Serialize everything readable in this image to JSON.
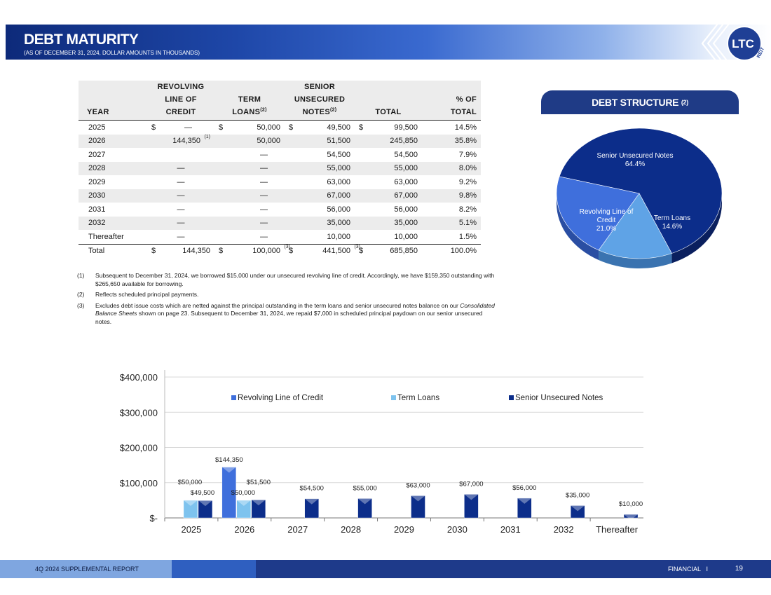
{
  "header": {
    "title": "DEBT MATURITY",
    "subtitle": "(AS OF DECEMBER 31, 2024, DOLLAR AMOUNTS IN THOUSANDS)",
    "logo_text": "LTC",
    "logo_sub": "REIT"
  },
  "table": {
    "headers": {
      "year": "YEAR",
      "rloc_1": "REVOLVING",
      "rloc_2": "LINE OF",
      "rloc_3": "CREDIT",
      "term_1": "TERM",
      "term_2": "LOANS",
      "term_fn": "(2)",
      "sun_1": "SENIOR",
      "sun_2": "UNSECURED",
      "sun_3": "NOTES",
      "sun_fn": "(2)",
      "total": "TOTAL",
      "pct_1": "% OF",
      "pct_2": "TOTAL"
    },
    "rows": [
      {
        "year": "2025",
        "rloc": "—",
        "term": "50,000",
        "sun": "49,500",
        "total": "99,500",
        "pct": "14.5%"
      },
      {
        "year": "2026",
        "rloc": "144,350",
        "rloc_fn": "(1)",
        "term": "50,000",
        "sun": "51,500",
        "total": "245,850",
        "pct": "35.8%"
      },
      {
        "year": "2027",
        "rloc": "",
        "term": "—",
        "sun": "54,500",
        "total": "54,500",
        "pct": "7.9%"
      },
      {
        "year": "2028",
        "rloc": "—",
        "term": "—",
        "sun": "55,000",
        "total": "55,000",
        "pct": "8.0%"
      },
      {
        "year": "2029",
        "rloc": "—",
        "term": "—",
        "sun": "63,000",
        "total": "63,000",
        "pct": "9.2%"
      },
      {
        "year": "2030",
        "rloc": "—",
        "term": "—",
        "sun": "67,000",
        "total": "67,000",
        "pct": "9.8%"
      },
      {
        "year": "2031",
        "rloc": "—",
        "term": "—",
        "sun": "56,000",
        "total": "56,000",
        "pct": "8.2%"
      },
      {
        "year": "2032",
        "rloc": "—",
        "term": "—",
        "sun": "35,000",
        "total": "35,000",
        "pct": "5.1%"
      },
      {
        "year": "Thereafter",
        "rloc": "—",
        "term": "—",
        "sun": "10,000",
        "total": "10,000",
        "pct": "1.5%"
      }
    ],
    "total_row": {
      "year": "Total",
      "rloc": "144,350",
      "term": "100,000",
      "term_fn": "(3)",
      "sun": "441,500",
      "sun_fn": "(3)",
      "total": "685,850",
      "pct": "100.0%"
    },
    "dollar": "$"
  },
  "footnotes": [
    {
      "num": "(1)",
      "text": "Subsequent to December 31, 2024, we borrowed $15,000 under our unsecured revolving line of credit.  Accordingly, we have $159,350 outstanding with $265,650 available for borrowing."
    },
    {
      "num": "(2)",
      "text": "Reflects scheduled principal payments."
    },
    {
      "num": "(3)",
      "text_a": "Excludes debt issue costs which are netted against the principal outstanding in the term loans and senior unsecured notes balance on our ",
      "text_italic": "Consolidated Balance Sheets",
      "text_b": " shown on page 23. Subsequent to December 31, 2024, we repaid $7,000 in scheduled principal paydown on our senior unsecured notes."
    }
  ],
  "pie": {
    "title": "DEBT STRUCTURE",
    "title_fn": "(2)",
    "slices": [
      {
        "name": "Senior Unsecured Notes",
        "pct": "64.4%",
        "value": 64.4,
        "color": "#0c2d8a",
        "side": "#0a1f5e"
      },
      {
        "name": "Term Loans",
        "pct": "14.6%",
        "value": 14.6,
        "color": "#5fa3e6",
        "side": "#3a73b0"
      },
      {
        "name_1": "Revolving Line of",
        "name_2": "Credit",
        "pct": "21.0%",
        "value": 21.0,
        "color": "#3f6fdc",
        "side": "#2a4ea3"
      }
    ]
  },
  "chart_data": {
    "type": "bar",
    "categories": [
      "2025",
      "2026",
      "2027",
      "2028",
      "2029",
      "2030",
      "2031",
      "2032",
      "Thereafter"
    ],
    "series": [
      {
        "name": "Revolving Line of Credit",
        "values": [
          0,
          144350,
          0,
          0,
          0,
          0,
          0,
          0,
          0
        ],
        "color": "#3f6fdc",
        "labels": [
          "",
          "$144,350",
          "",
          "",
          "",
          "",
          "",
          "",
          ""
        ]
      },
      {
        "name": "Term Loans",
        "values": [
          50000,
          50000,
          0,
          0,
          0,
          0,
          0,
          0,
          0
        ],
        "color": "#7ec3ee",
        "labels": [
          "$50,000",
          "$50,000",
          "",
          "",
          "",
          "",
          "",
          "",
          ""
        ]
      },
      {
        "name": "Senior Unsecured Notes",
        "values": [
          49500,
          51500,
          54500,
          55000,
          63000,
          67000,
          56000,
          35000,
          10000
        ],
        "color": "#0c2d8a",
        "labels": [
          "$49,500",
          "$51,500",
          "$54,500",
          "$55,000",
          "$63,000",
          "$67,000",
          "$56,000",
          "$35,000",
          "$10,000"
        ]
      }
    ],
    "yticks": [
      0,
      100000,
      200000,
      300000,
      400000
    ],
    "ytick_labels": [
      "$-",
      "$100,000",
      "$200,000",
      "$300,000",
      "$400,000"
    ],
    "ylim": [
      0,
      420000
    ],
    "legend": "top"
  },
  "footer": {
    "left": "4Q 2024 SUPPLEMENTAL REPORT",
    "right": "FINANCIAL",
    "sep": "I",
    "page": "19"
  }
}
